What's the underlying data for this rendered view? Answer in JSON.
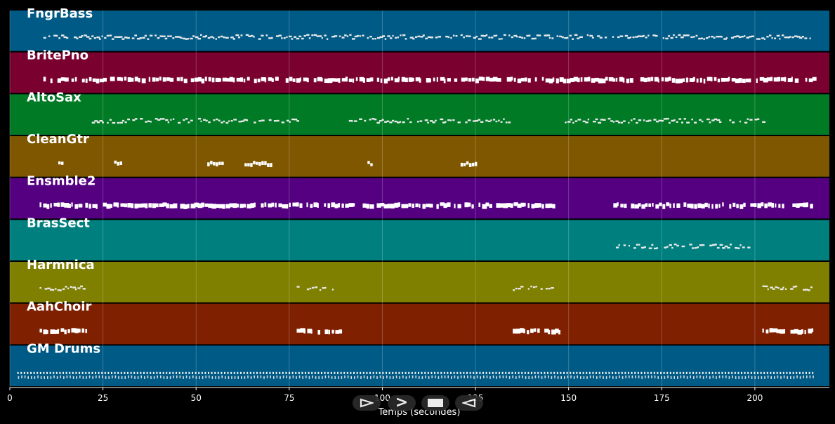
{
  "tracks": [
    {
      "name": "FngrBass",
      "color": "#005a86",
      "density": 0.85,
      "style": "dots",
      "segments": [
        [
          9,
          215
        ]
      ]
    },
    {
      "name": "BritePno",
      "color": "#7a0030",
      "density": 0.9,
      "style": "block",
      "segments": [
        [
          9,
          216
        ]
      ]
    },
    {
      "name": "AltoSax",
      "color": "#007a25",
      "density": 0.8,
      "style": "dots",
      "segments": [
        [
          22,
          77
        ],
        [
          91,
          135
        ],
        [
          149,
          202
        ]
      ]
    },
    {
      "name": "CleanGtr",
      "color": "#7f5700",
      "density": 0.5,
      "style": "sparse",
      "segments": [
        [
          13,
          14
        ],
        [
          28,
          30
        ],
        [
          53,
          57
        ],
        [
          63,
          70
        ],
        [
          96,
          97
        ],
        [
          121,
          125
        ]
      ]
    },
    {
      "name": "Ensmble2",
      "color": "#540081",
      "density": 0.9,
      "style": "block",
      "segments": [
        [
          8,
          146
        ],
        [
          162,
          215
        ]
      ]
    },
    {
      "name": "BrasSect",
      "color": "#007f7f",
      "density": 0.6,
      "style": "dots",
      "segments": [
        [
          162,
          198
        ]
      ]
    },
    {
      "name": "Harmnica",
      "color": "#7f7f00",
      "density": 0.7,
      "style": "dots",
      "segments": [
        [
          8,
          20
        ],
        [
          77,
          88
        ],
        [
          135,
          146
        ],
        [
          202,
          215
        ]
      ]
    },
    {
      "name": "AahChoir",
      "color": "#7f2000",
      "density": 0.95,
      "style": "block",
      "segments": [
        [
          8,
          21
        ],
        [
          77,
          90
        ],
        [
          135,
          148
        ],
        [
          202,
          216
        ]
      ]
    },
    {
      "name": "GM Drums",
      "color": "#005a86",
      "density": 1.0,
      "style": "drums",
      "segments": [
        [
          2,
          216
        ]
      ]
    }
  ],
  "axis": {
    "xlim": [
      0,
      220
    ],
    "ticks": [
      "0",
      "25",
      "50",
      "75",
      "100",
      "125",
      "150",
      "175",
      "200"
    ],
    "tick_values": [
      0,
      25,
      50,
      75,
      100,
      125,
      150,
      175,
      200
    ],
    "label": "Temps (secondes)"
  },
  "controls": {
    "play_glyph": "play",
    "forward_glyph": ">",
    "stop_glyph": "stop",
    "rewind_glyph": "rewind"
  }
}
